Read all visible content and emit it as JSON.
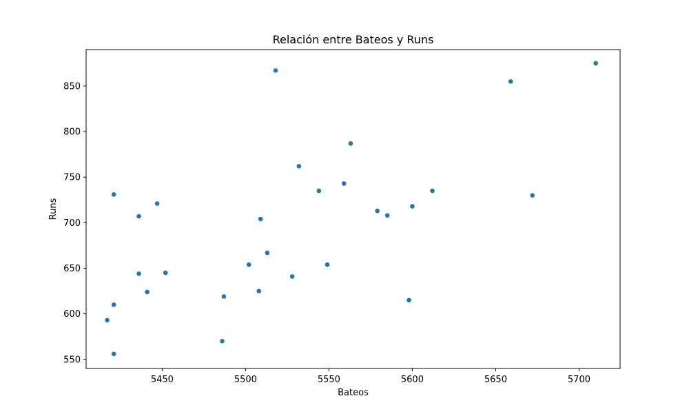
{
  "chart_data": {
    "type": "scatter",
    "title": "Relación entre Bateos y Runs",
    "xlabel": "Bateos",
    "ylabel": "Runs",
    "xlim": [
      5404.4,
      5724.6
    ],
    "ylim": [
      540,
      890
    ],
    "x_ticks": [
      5450,
      5500,
      5550,
      5600,
      5650,
      5700
    ],
    "y_ticks": [
      550,
      600,
      650,
      700,
      750,
      800,
      850
    ],
    "grid": false,
    "marker_color": "#1f77b4",
    "points": [
      {
        "x": 5417,
        "y": 593
      },
      {
        "x": 5421,
        "y": 556
      },
      {
        "x": 5421,
        "y": 610
      },
      {
        "x": 5421,
        "y": 731
      },
      {
        "x": 5436,
        "y": 644
      },
      {
        "x": 5436,
        "y": 707
      },
      {
        "x": 5441,
        "y": 624
      },
      {
        "x": 5447,
        "y": 721
      },
      {
        "x": 5452,
        "y": 645
      },
      {
        "x": 5486,
        "y": 570
      },
      {
        "x": 5487,
        "y": 619
      },
      {
        "x": 5502,
        "y": 654
      },
      {
        "x": 5508,
        "y": 625
      },
      {
        "x": 5509,
        "y": 704
      },
      {
        "x": 5513,
        "y": 667
      },
      {
        "x": 5518,
        "y": 867
      },
      {
        "x": 5528,
        "y": 641
      },
      {
        "x": 5532,
        "y": 762
      },
      {
        "x": 5544,
        "y": 735
      },
      {
        "x": 5549,
        "y": 654
      },
      {
        "x": 5559,
        "y": 743
      },
      {
        "x": 5563,
        "y": 787
      },
      {
        "x": 5579,
        "y": 713
      },
      {
        "x": 5585,
        "y": 708
      },
      {
        "x": 5598,
        "y": 615
      },
      {
        "x": 5600,
        "y": 718
      },
      {
        "x": 5612,
        "y": 735
      },
      {
        "x": 5659,
        "y": 855
      },
      {
        "x": 5672,
        "y": 730
      },
      {
        "x": 5710,
        "y": 875
      }
    ]
  }
}
